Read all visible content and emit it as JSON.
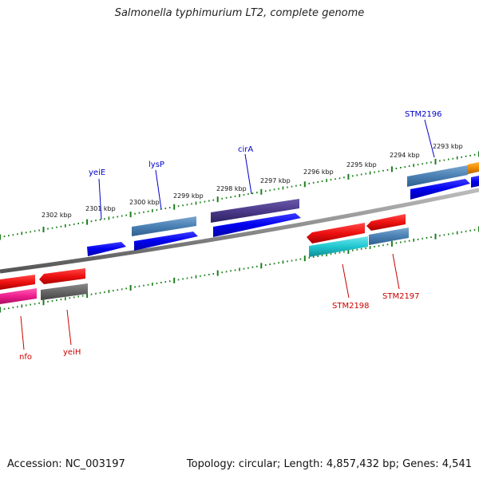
{
  "title": "Salmonella typhimurium LT2, complete genome",
  "accession_text": "Accession: NC_003197",
  "stats_text": "Topology: circular; Length: 4,857,432 bp; Genes: 4,541",
  "colors": {
    "backbone": "#888888",
    "tick": "#1a7f1a",
    "forward_label": "#0000cc",
    "reverse_label": "#cc0000"
  },
  "kbp_labels": [
    "2302 kbp",
    "2301 kbp",
    "2300 kbp",
    "2299 kbp",
    "2298 kbp",
    "2297 kbp",
    "2296 kbp",
    "2295 kbp",
    "2294 kbp",
    "2293 kbp"
  ],
  "forward_genes": [
    {
      "name": "yeiE",
      "color": "#0000ee"
    },
    {
      "name": "lysP",
      "color": "#4a86b8"
    },
    {
      "name": "cirA",
      "color": "#4b3a8a"
    },
    {
      "name": "STM2196",
      "color": "#3f7db8"
    }
  ],
  "reverse_genes": [
    {
      "name": "nfo",
      "color": "#ee1111"
    },
    {
      "name": "yeiH",
      "color": "#666666"
    },
    {
      "name": "STM2198",
      "color": "#22c8d0"
    },
    {
      "name": "STM2197",
      "color": "#4a86b8"
    }
  ]
}
